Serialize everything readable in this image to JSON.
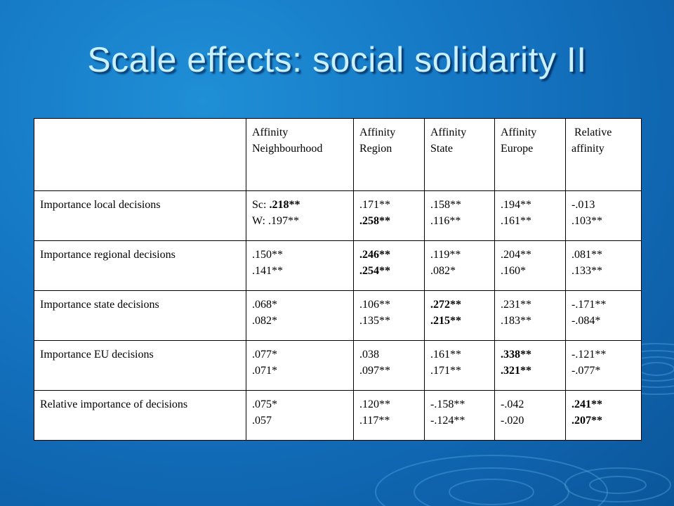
{
  "slide": {
    "title": "Scale effects: social solidarity II"
  },
  "table": {
    "columns": [
      {
        "line1": "",
        "line2": ""
      },
      {
        "line1": "Affinity",
        "line2": "Neighbourhood"
      },
      {
        "line1": "Affinity",
        "line2": "Region"
      },
      {
        "line1": "Affinity",
        "line2": "State"
      },
      {
        "line1": "Affinity",
        "line2": "Europe"
      },
      {
        "line1": " Relative",
        "line2": "affinity"
      }
    ],
    "rows": [
      {
        "label": "Importance local decisions",
        "cells": [
          {
            "a": "Sc:  .218**",
            "b": "W:  .197**"
          },
          {
            "a": ".171**",
            "b": ".258**"
          },
          {
            "a": ".158**",
            "b": ".116**"
          },
          {
            "a": ".194**",
            "b": ".161**"
          },
          {
            "a": "-.013",
            "b": ".103**"
          }
        ]
      },
      {
        "label": "Importance regional decisions",
        "cells": [
          {
            "a": ".150**",
            "b": ".141**"
          },
          {
            "a": ".246**",
            "b": ".254**"
          },
          {
            "a": ".119**",
            "b": ".082*"
          },
          {
            "a": ".204**",
            "b": ".160*"
          },
          {
            "a": ".081**",
            "b": ".133**"
          }
        ]
      },
      {
        "label": "Importance state decisions",
        "cells": [
          {
            "a": ".068*",
            "b": ".082*"
          },
          {
            "a": ".106**",
            "b": ".135**"
          },
          {
            "a": ".272**",
            "b": ".215**"
          },
          {
            "a": ".231**",
            "b": ".183**"
          },
          {
            "a": "-.171**",
            "b": "-.084*"
          }
        ]
      },
      {
        "label": "Importance EU decisions",
        "cells": [
          {
            "a": ".077*",
            "b": ".071*"
          },
          {
            "a": ".038",
            "b": ".097**"
          },
          {
            "a": ".161**",
            "b": ".171**"
          },
          {
            "a": ".338**",
            "b": ".321**"
          },
          {
            "a": "-.121**",
            "b": "-.077*"
          }
        ]
      },
      {
        "label": "Relative importance of decisions",
        "cells": [
          {
            "a": ".075*",
            "b": ".057"
          },
          {
            "a": ".120**",
            "b": ".117**"
          },
          {
            "a": "-.158**",
            "b": "-.124**"
          },
          {
            "a": "-.042",
            "b": "-.020"
          },
          {
            "a": ".241**",
            "b": ".207**"
          }
        ]
      }
    ]
  },
  "colors": {
    "background": "#1577c4",
    "title": "#c8f0ff",
    "table_background": "#ffffff",
    "table_border": "#000000"
  }
}
